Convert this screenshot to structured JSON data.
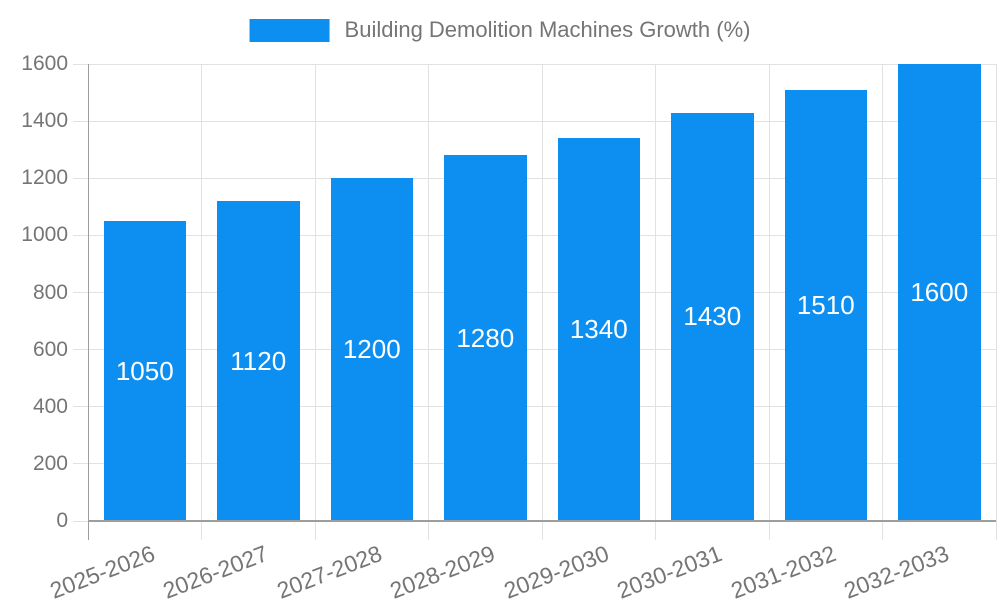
{
  "legend": {
    "label": "Building Demolition Machines Growth (%)"
  },
  "colors": {
    "bar": "#0d8ff2",
    "grid": "#e2e2e2",
    "axis": "#9e9e9e",
    "text": "#757575",
    "bar_label": "#ffffff"
  },
  "chart_data": {
    "type": "bar",
    "title": "Building Demolition Machines Growth (%)",
    "categories": [
      "2025-2026",
      "2026-2027",
      "2027-2028",
      "2028-2029",
      "2029-2030",
      "2030-2031",
      "2031-2032",
      "2032-2033"
    ],
    "values": [
      1050,
      1120,
      1200,
      1280,
      1340,
      1430,
      1510,
      1600
    ],
    "data_labels": [
      "1050",
      "1120",
      "1200",
      "1280",
      "1340",
      "1430",
      "1510",
      "1600"
    ],
    "data_label_position": "inside-center",
    "xlabel": "",
    "ylabel": "",
    "ylim": [
      0,
      1600
    ],
    "yticks": [
      0,
      200,
      400,
      600,
      800,
      1000,
      1200,
      1400,
      1600
    ],
    "grid": true,
    "legend_position": "top-center",
    "x_label_rotation_deg": -21
  }
}
